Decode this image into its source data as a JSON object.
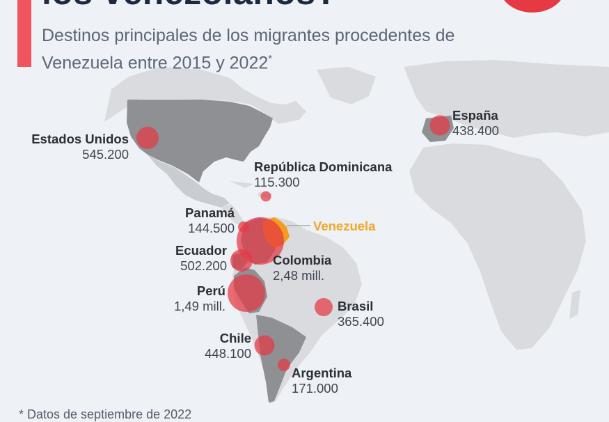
{
  "header": {
    "title": "los venezolanos?",
    "subtitle": "Destinos principales de los migrantes procedentes de Venezuela entre 2015 y 2022",
    "subtitle_asterisk": "*"
  },
  "colors": {
    "accent": "#f0555f",
    "bubble": "#e53944",
    "origin": "#f59b1e",
    "origin_label": "#efa82a",
    "land_highlight": "#8e9094",
    "land": "#d9dbdf"
  },
  "origin": {
    "name": "Venezuela"
  },
  "destinations": [
    {
      "name": "Estados Unidos",
      "value": "545.200",
      "people": 545200
    },
    {
      "name": "España",
      "value": "438.400",
      "people": 438400
    },
    {
      "name": "República Dominicana",
      "value": "115.300",
      "people": 115300
    },
    {
      "name": "Panamá",
      "value": "144.500",
      "people": 144500
    },
    {
      "name": "Ecuador",
      "value": "502.200",
      "people": 502200
    },
    {
      "name": "Colombia",
      "value": "2,48 mill.",
      "people": 2480000
    },
    {
      "name": "Perú",
      "value": "1,49 mill.",
      "people": 1490000
    },
    {
      "name": "Brasil",
      "value": "365.400",
      "people": 365400
    },
    {
      "name": "Chile",
      "value": "448.100",
      "people": 448100
    },
    {
      "name": "Argentina",
      "value": "171.000",
      "people": 171000
    }
  ],
  "footnote": "* Datos de septiembre de 2022"
}
